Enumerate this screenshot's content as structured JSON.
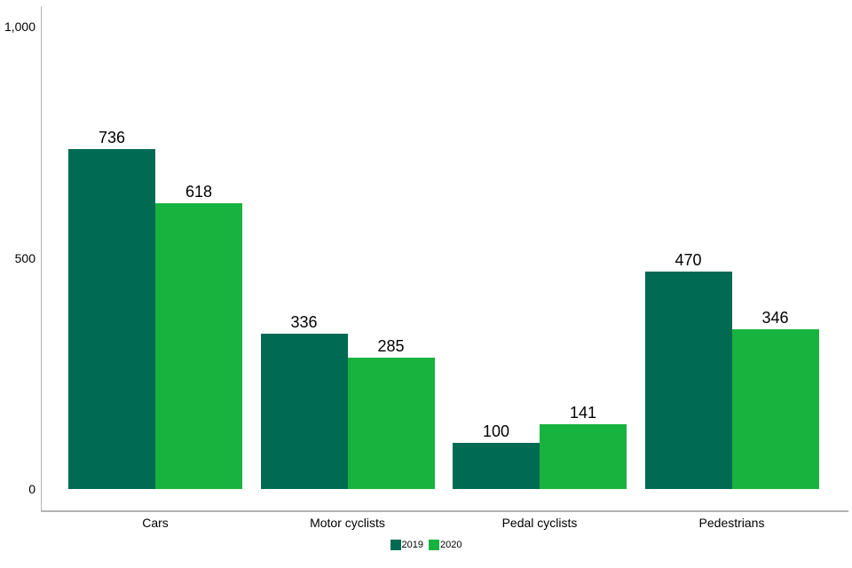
{
  "chart_data": {
    "type": "bar",
    "title": "",
    "xlabel": "",
    "ylabel": "",
    "categories": [
      "Cars",
      "Motor cyclists",
      "Pedal cyclists",
      "Pedestrians"
    ],
    "series": [
      {
        "name": "2019",
        "color": "#006A53",
        "values": [
          736,
          336,
          100,
          470
        ]
      },
      {
        "name": "2020",
        "color": "#17B33E",
        "values": [
          618,
          285,
          141,
          346
        ]
      }
    ],
    "value_labels": [
      [
        "736",
        "336",
        "100",
        "470"
      ],
      [
        "618",
        "285",
        "141",
        "346"
      ]
    ],
    "yticks": [
      {
        "value": 0,
        "label": "0"
      },
      {
        "value": 500,
        "label": "500"
      },
      {
        "value": 1000,
        "label": "1,000"
      }
    ],
    "ylim": [
      0,
      1000
    ],
    "grid": false,
    "legend_position": "bottom",
    "colors": {
      "axis": "#b3b3b3",
      "text": "#000000",
      "background": "#ffffff"
    }
  }
}
